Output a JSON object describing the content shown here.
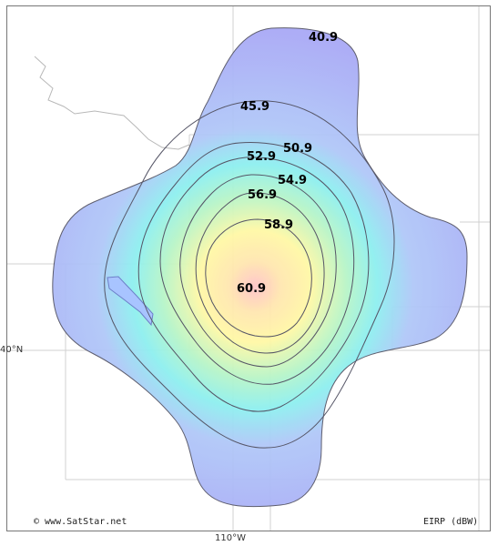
{
  "map": {
    "credit": "© www.SatStar.net",
    "unit_label": "EIRP (dBW)",
    "lon_label": "110°W",
    "lat_label": "40°N",
    "contour_labels": [
      "40.9",
      "45.9",
      "50.9",
      "52.9",
      "54.9",
      "56.9",
      "58.9",
      "60.9"
    ],
    "colors": {
      "coverage_outer": "#a9a9f6",
      "coverage_mid": "#8ef0f0",
      "coverage_inner": "#fff5a8",
      "coverage_peak": "#ffc8c8",
      "contour_line": "#555566",
      "grid_line": "#d0d0d0",
      "border_line": "#b8b8b8",
      "lake_fill": "#a8c4ff"
    }
  }
}
